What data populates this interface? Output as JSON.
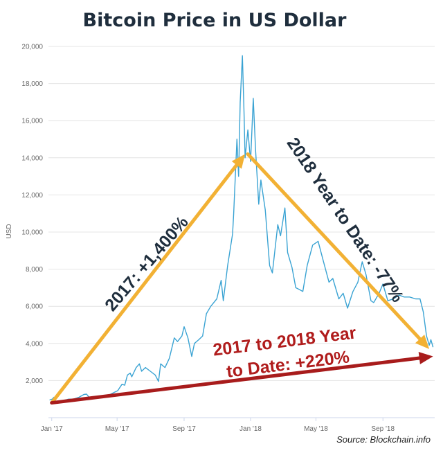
{
  "chart_data": {
    "type": "line",
    "title": "Bitcoin Price in US Dollar",
    "xlabel": "",
    "ylabel": "USD",
    "ylim": [
      0,
      20000
    ],
    "yticks": [
      2000,
      4000,
      6000,
      8000,
      10000,
      12000,
      14000,
      16000,
      18000,
      20000
    ],
    "ytick_labels": [
      "2,000",
      "4,000",
      "6,000",
      "8,000",
      "10,000",
      "12,000",
      "14,000",
      "16,000",
      "18,000",
      "20,000"
    ],
    "xticks": [
      "2017-01-01",
      "2017-05-01",
      "2017-09-01",
      "2018-01-01",
      "2018-05-01",
      "2018-09-01"
    ],
    "xtick_labels": [
      "Jan '17",
      "May '17",
      "Sep '17",
      "Jan '18",
      "May '18",
      "Sep '18"
    ],
    "xlim": [
      "2016-12-26",
      "2018-12-05"
    ],
    "grid": true,
    "line_color": "#3aa3d3",
    "series": [
      {
        "x": [
          "2016-12-28",
          "2017-01-02",
          "2017-01-05",
          "2017-01-08",
          "2017-01-12",
          "2017-01-17",
          "2017-01-23",
          "2017-02-01",
          "2017-02-10",
          "2017-02-20",
          "2017-03-01",
          "2017-03-06",
          "2017-03-12",
          "2017-03-20",
          "2017-03-28",
          "2017-04-05",
          "2017-04-15",
          "2017-04-25",
          "2017-05-02",
          "2017-05-10",
          "2017-05-15",
          "2017-05-20",
          "2017-05-25",
          "2017-05-28",
          "2017-06-05",
          "2017-06-11",
          "2017-06-15",
          "2017-06-22",
          "2017-07-01",
          "2017-07-10",
          "2017-07-16",
          "2017-07-20",
          "2017-07-28",
          "2017-08-05",
          "2017-08-14",
          "2017-08-20",
          "2017-08-28",
          "2017-09-01",
          "2017-09-08",
          "2017-09-15",
          "2017-09-20",
          "2017-09-28",
          "2017-10-05",
          "2017-10-12",
          "2017-10-20",
          "2017-10-31",
          "2017-11-08",
          "2017-11-12",
          "2017-11-20",
          "2017-11-29",
          "2017-12-01",
          "2017-12-07",
          "2017-12-10",
          "2017-12-13",
          "2017-12-17",
          "2017-12-20",
          "2017-12-22",
          "2017-12-27",
          "2018-01-01",
          "2018-01-06",
          "2018-01-10",
          "2018-01-16",
          "2018-01-20",
          "2018-01-28",
          "2018-02-05",
          "2018-02-10",
          "2018-02-20",
          "2018-02-25",
          "2018-03-05",
          "2018-03-10",
          "2018-03-18",
          "2018-03-25",
          "2018-04-01",
          "2018-04-07",
          "2018-04-15",
          "2018-04-25",
          "2018-05-05",
          "2018-05-15",
          "2018-05-25",
          "2018-06-01",
          "2018-06-12",
          "2018-06-20",
          "2018-06-28",
          "2018-07-08",
          "2018-07-17",
          "2018-07-25",
          "2018-08-01",
          "2018-08-10",
          "2018-08-15",
          "2018-08-25",
          "2018-09-01",
          "2018-09-10",
          "2018-09-20",
          "2018-10-01",
          "2018-10-10",
          "2018-10-20",
          "2018-10-31",
          "2018-11-08",
          "2018-11-14",
          "2018-11-20",
          "2018-11-25",
          "2018-11-28",
          "2018-12-02"
        ],
        "y": [
          950,
          1000,
          1100,
          900,
          800,
          900,
          920,
          1000,
          1000,
          1100,
          1250,
          1270,
          1050,
          1100,
          1050,
          1150,
          1200,
          1350,
          1450,
          1800,
          1750,
          2300,
          2400,
          2200,
          2700,
          2900,
          2500,
          2700,
          2500,
          2300,
          1950,
          2900,
          2700,
          3200,
          4300,
          4100,
          4400,
          4900,
          4300,
          3300,
          4000,
          4200,
          4400,
          5600,
          6000,
          6400,
          7400,
          6300,
          8200,
          9900,
          11000,
          15000,
          13000,
          17000,
          19500,
          16500,
          14000,
          15500,
          13800,
          17200,
          14500,
          11500,
          12800,
          11200,
          8200,
          7800,
          10400,
          9800,
          11300,
          8900,
          8100,
          7000,
          6900,
          6800,
          8200,
          9300,
          9500,
          8400,
          7300,
          7500,
          6400,
          6700,
          5900,
          6800,
          7300,
          8400,
          7700,
          6300,
          6200,
          6700,
          7200,
          6300,
          6400,
          6600,
          6500,
          6500,
          6400,
          6400,
          5700,
          4400,
          3900,
          4200,
          3800
        ]
      }
    ],
    "annotations": [
      {
        "text": "2017: +1,400%",
        "color": "#1f2e3d"
      },
      {
        "text": "2018 Year to Date: -77%",
        "color": "#1f2e3d"
      },
      {
        "text_lines": [
          "2017 to 2018 Year",
          "to Date: +220%"
        ],
        "color": "#b01c1c"
      }
    ],
    "arrows": [
      {
        "name": "2017-rise",
        "from": [
          "2017-01-01",
          800
        ],
        "to": [
          "2017-12-22",
          14200
        ],
        "color": "#f2b134"
      },
      {
        "name": "2018-decline",
        "from": [
          "2017-12-27",
          14200
        ],
        "to": [
          "2018-11-25",
          3700
        ],
        "color": "#f2b134"
      },
      {
        "name": "overall-change",
        "from": [
          "2017-01-01",
          800
        ],
        "to": [
          "2018-12-02",
          3300
        ],
        "color": "#a81c1c"
      }
    ],
    "source": "Source: Blockchain.info"
  }
}
